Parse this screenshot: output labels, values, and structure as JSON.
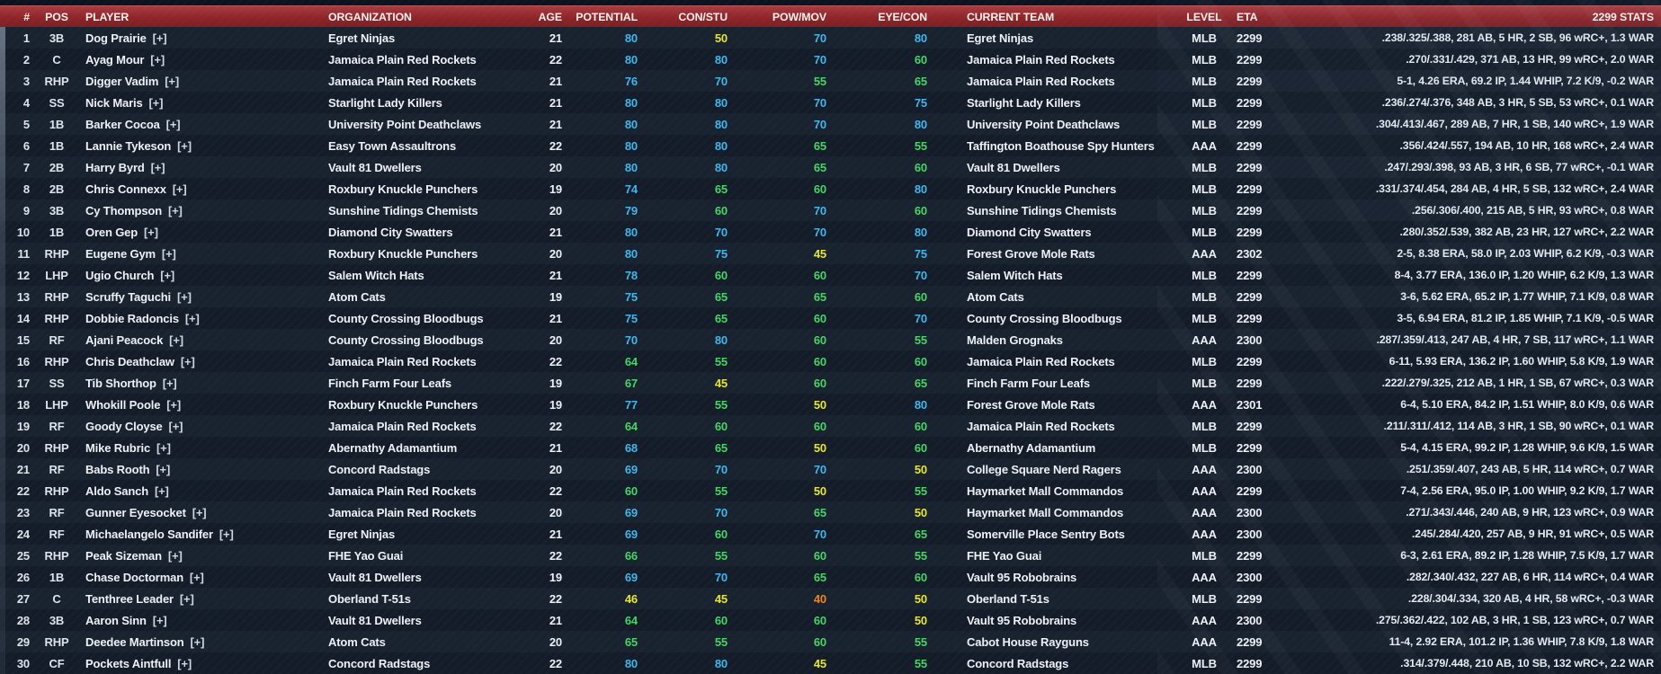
{
  "table": {
    "plus_tag": "[+]",
    "rating_colors": {
      "blue": "#45b4e8",
      "green": "#4cd168",
      "yellow": "#e4e53a",
      "orange": "#e8842d"
    },
    "rating_thresholds": {
      "blue": 68,
      "green": 55,
      "yellow": 45
    },
    "columns": [
      {
        "key": "rank",
        "label": "#"
      },
      {
        "key": "pos",
        "label": "POS"
      },
      {
        "key": "player",
        "label": "PLAYER"
      },
      {
        "key": "org",
        "label": "ORGANIZATION"
      },
      {
        "key": "age",
        "label": "AGE"
      },
      {
        "key": "potential",
        "label": "POTENTIAL"
      },
      {
        "key": "constu",
        "label": "CON/STU"
      },
      {
        "key": "powmov",
        "label": "POW/MOV"
      },
      {
        "key": "eyecon",
        "label": "EYE/CON"
      },
      {
        "key": "team",
        "label": "CURRENT TEAM"
      },
      {
        "key": "level",
        "label": "LEVEL"
      },
      {
        "key": "eta",
        "label": "ETA"
      },
      {
        "key": "stats",
        "label": "2299 STATS"
      }
    ],
    "rows": [
      {
        "rank": 1,
        "pos": "3B",
        "player": "Dog Prairie",
        "org": "Egret Ninjas",
        "age": 21,
        "potential": 80,
        "constu": 50,
        "powmov": 70,
        "eyecon": 80,
        "team": "Egret Ninjas",
        "level": "MLB",
        "eta": "2299",
        "stats": ".238/.325/.388, 281 AB, 5 HR, 2 SB, 96 wRC+, 1.3 WAR"
      },
      {
        "rank": 2,
        "pos": "C",
        "player": "Ayag Mour",
        "org": "Jamaica Plain Red Rockets",
        "age": 22,
        "potential": 80,
        "constu": 80,
        "powmov": 70,
        "eyecon": 60,
        "team": "Jamaica Plain Red Rockets",
        "level": "MLB",
        "eta": "2299",
        "stats": ".270/.331/.429, 371 AB, 13 HR, 99 wRC+, 2.0 WAR"
      },
      {
        "rank": 3,
        "pos": "RHP",
        "player": "Digger Vadim",
        "org": "Jamaica Plain Red Rockets",
        "age": 21,
        "potential": 76,
        "constu": 70,
        "powmov": 55,
        "eyecon": 65,
        "team": "Jamaica Plain Red Rockets",
        "level": "MLB",
        "eta": "2299",
        "stats": "5-1, 4.26 ERA, 69.2 IP, 1.44 WHIP, 7.2 K/9, -0.2 WAR"
      },
      {
        "rank": 4,
        "pos": "SS",
        "player": "Nick Maris",
        "org": "Starlight Lady Killers",
        "age": 21,
        "potential": 80,
        "constu": 80,
        "powmov": 70,
        "eyecon": 75,
        "team": "Starlight Lady Killers",
        "level": "MLB",
        "eta": "2299",
        "stats": ".236/.274/.376, 348 AB, 3 HR, 5 SB, 53 wRC+, 0.1 WAR"
      },
      {
        "rank": 5,
        "pos": "1B",
        "player": "Barker Cocoa",
        "org": "University Point Deathclaws",
        "age": 21,
        "potential": 80,
        "constu": 80,
        "powmov": 70,
        "eyecon": 80,
        "team": "University Point Deathclaws",
        "level": "MLB",
        "eta": "2299",
        "stats": ".304/.413/.467, 289 AB, 7 HR, 1 SB, 140 wRC+, 1.9 WAR"
      },
      {
        "rank": 6,
        "pos": "1B",
        "player": "Lannie Tykeson",
        "org": "Easy Town Assaultrons",
        "age": 22,
        "potential": 80,
        "constu": 80,
        "powmov": 65,
        "eyecon": 55,
        "team": "Taffington Boathouse Spy Hunters",
        "level": "AAA",
        "eta": "2299",
        "stats": ".356/.424/.557, 194 AB, 10 HR, 168 wRC+, 2.4 WAR"
      },
      {
        "rank": 7,
        "pos": "2B",
        "player": "Harry Byrd",
        "org": "Vault 81 Dwellers",
        "age": 20,
        "potential": 80,
        "constu": 80,
        "powmov": 65,
        "eyecon": 60,
        "team": "Vault 81 Dwellers",
        "level": "MLB",
        "eta": "2299",
        "stats": ".247/.293/.398, 93 AB, 3 HR, 6 SB, 77 wRC+, -0.1 WAR"
      },
      {
        "rank": 8,
        "pos": "2B",
        "player": "Chris Connexx",
        "org": "Roxbury Knuckle Punchers",
        "age": 19,
        "potential": 74,
        "constu": 65,
        "powmov": 60,
        "eyecon": 80,
        "team": "Roxbury Knuckle Punchers",
        "level": "MLB",
        "eta": "2299",
        "stats": ".331/.374/.454, 284 AB, 4 HR, 5 SB, 132 wRC+, 2.4 WAR"
      },
      {
        "rank": 9,
        "pos": "3B",
        "player": "Cy Thompson",
        "org": "Sunshine Tidings Chemists",
        "age": 20,
        "potential": 79,
        "constu": 60,
        "powmov": 70,
        "eyecon": 60,
        "team": "Sunshine Tidings Chemists",
        "level": "MLB",
        "eta": "2299",
        "stats": ".256/.306/.400, 215 AB, 5 HR, 93 wRC+, 0.8 WAR"
      },
      {
        "rank": 10,
        "pos": "1B",
        "player": "Oren Gep",
        "org": "Diamond City Swatters",
        "age": 21,
        "potential": 80,
        "constu": 70,
        "powmov": 70,
        "eyecon": 80,
        "team": "Diamond City Swatters",
        "level": "MLB",
        "eta": "2299",
        "stats": ".280/.352/.539, 382 AB, 23 HR, 127 wRC+, 2.2 WAR"
      },
      {
        "rank": 11,
        "pos": "RHP",
        "player": "Eugene Gym",
        "org": "Roxbury Knuckle Punchers",
        "age": 20,
        "potential": 80,
        "constu": 75,
        "powmov": 45,
        "eyecon": 75,
        "team": "Forest Grove Mole Rats",
        "level": "AAA",
        "eta": "2302",
        "stats": "2-5, 8.38 ERA, 58.0 IP, 2.03 WHIP, 6.2 K/9, -0.3 WAR"
      },
      {
        "rank": 12,
        "pos": "LHP",
        "player": "Ugio Church",
        "org": "Salem Witch Hats",
        "age": 21,
        "potential": 78,
        "constu": 60,
        "powmov": 60,
        "eyecon": 70,
        "team": "Salem Witch Hats",
        "level": "MLB",
        "eta": "2299",
        "stats": "8-4, 3.77 ERA, 136.0 IP, 1.20 WHIP, 6.2 K/9, 1.3 WAR"
      },
      {
        "rank": 13,
        "pos": "RHP",
        "player": "Scruffy Taguchi",
        "org": "Atom Cats",
        "age": 19,
        "potential": 75,
        "constu": 65,
        "powmov": 65,
        "eyecon": 60,
        "team": "Atom Cats",
        "level": "MLB",
        "eta": "2299",
        "stats": "3-6, 5.62 ERA, 65.2 IP, 1.77 WHIP, 7.1 K/9, 0.8 WAR"
      },
      {
        "rank": 14,
        "pos": "RHP",
        "player": "Dobbie Radoncis",
        "org": "County Crossing Bloodbugs",
        "age": 21,
        "potential": 75,
        "constu": 65,
        "powmov": 60,
        "eyecon": 70,
        "team": "County Crossing Bloodbugs",
        "level": "MLB",
        "eta": "2299",
        "stats": "3-5, 6.94 ERA, 81.2 IP, 1.85 WHIP, 7.1 K/9, -0.5 WAR"
      },
      {
        "rank": 15,
        "pos": "RF",
        "player": "Ajani Peacock",
        "org": "County Crossing Bloodbugs",
        "age": 20,
        "potential": 70,
        "constu": 80,
        "powmov": 60,
        "eyecon": 55,
        "team": "Malden Grognaks",
        "level": "AAA",
        "eta": "2300",
        "stats": ".287/.359/.413, 247 AB, 4 HR, 7 SB, 117 wRC+, 1.1 WAR"
      },
      {
        "rank": 16,
        "pos": "RHP",
        "player": "Chris Deathclaw",
        "org": "Jamaica Plain Red Rockets",
        "age": 22,
        "potential": 64,
        "constu": 55,
        "powmov": 60,
        "eyecon": 60,
        "team": "Jamaica Plain Red Rockets",
        "level": "MLB",
        "eta": "2299",
        "stats": "6-11, 5.93 ERA, 136.2 IP, 1.60 WHIP, 5.8 K/9, 1.9 WAR"
      },
      {
        "rank": 17,
        "pos": "SS",
        "player": "Tib Shorthop",
        "org": "Finch Farm Four Leafs",
        "age": 19,
        "potential": 67,
        "constu": 45,
        "powmov": 60,
        "eyecon": 65,
        "team": "Finch Farm Four Leafs",
        "level": "MLB",
        "eta": "2299",
        "stats": ".222/.279/.325, 212 AB, 1 HR, 1 SB, 67 wRC+, 0.3 WAR"
      },
      {
        "rank": 18,
        "pos": "LHP",
        "player": "Whokill Poole",
        "org": "Roxbury Knuckle Punchers",
        "age": 19,
        "potential": 77,
        "constu": 55,
        "powmov": 50,
        "eyecon": 80,
        "team": "Forest Grove Mole Rats",
        "level": "AAA",
        "eta": "2301",
        "stats": "6-4, 5.10 ERA, 84.2 IP, 1.51 WHIP, 8.0 K/9, 0.6 WAR"
      },
      {
        "rank": 19,
        "pos": "RF",
        "player": "Goody Cloyse",
        "org": "Jamaica Plain Red Rockets",
        "age": 22,
        "potential": 64,
        "constu": 60,
        "powmov": 60,
        "eyecon": 60,
        "team": "Jamaica Plain Red Rockets",
        "level": "MLB",
        "eta": "2299",
        "stats": ".211/.311/.412, 114 AB, 3 HR, 1 SB, 90 wRC+, 0.1 WAR"
      },
      {
        "rank": 20,
        "pos": "RHP",
        "player": "Mike Rubric",
        "org": "Abernathy Adamantium",
        "age": 21,
        "potential": 68,
        "constu": 65,
        "powmov": 50,
        "eyecon": 60,
        "team": "Abernathy Adamantium",
        "level": "MLB",
        "eta": "2299",
        "stats": "5-4, 4.15 ERA, 99.2 IP, 1.28 WHIP, 9.6 K/9, 1.5 WAR"
      },
      {
        "rank": 21,
        "pos": "RF",
        "player": "Babs Rooth",
        "org": "Concord Radstags",
        "age": 20,
        "potential": 69,
        "constu": 70,
        "powmov": 70,
        "eyecon": 50,
        "team": "College Square Nerd Ragers",
        "level": "AAA",
        "eta": "2300",
        "stats": ".251/.359/.407, 243 AB, 5 HR, 114 wRC+, 0.7 WAR"
      },
      {
        "rank": 22,
        "pos": "RHP",
        "player": "Aldo Sanch",
        "org": "Jamaica Plain Red Rockets",
        "age": 22,
        "potential": 60,
        "constu": 55,
        "powmov": 50,
        "eyecon": 55,
        "team": "Haymarket Mall Commandos",
        "level": "AAA",
        "eta": "2299",
        "stats": "7-4, 2.56 ERA, 95.0 IP, 1.00 WHIP, 9.2 K/9, 1.7 WAR"
      },
      {
        "rank": 23,
        "pos": "RF",
        "player": "Gunner Eyesocket",
        "org": "Jamaica Plain Red Rockets",
        "age": 20,
        "potential": 69,
        "constu": 70,
        "powmov": 65,
        "eyecon": 50,
        "team": "Haymarket Mall Commandos",
        "level": "AAA",
        "eta": "2300",
        "stats": ".271/.343/.446, 240 AB, 9 HR, 123 wRC+, 0.9 WAR"
      },
      {
        "rank": 24,
        "pos": "RF",
        "player": "Michaelangelo Sandifer",
        "org": "Egret Ninjas",
        "age": 21,
        "potential": 69,
        "constu": 60,
        "powmov": 70,
        "eyecon": 65,
        "team": "Somerville Place Sentry Bots",
        "level": "AAA",
        "eta": "2300",
        "stats": ".245/.284/.420, 257 AB, 9 HR, 91 wRC+, 0.5 WAR"
      },
      {
        "rank": 25,
        "pos": "RHP",
        "player": "Peak Sizeman",
        "org": "FHE Yao Guai",
        "age": 22,
        "potential": 66,
        "constu": 55,
        "powmov": 60,
        "eyecon": 55,
        "team": "FHE Yao Guai",
        "level": "MLB",
        "eta": "2299",
        "stats": "6-3, 2.61 ERA, 89.2 IP, 1.28 WHIP, 7.5 K/9, 1.7 WAR"
      },
      {
        "rank": 26,
        "pos": "1B",
        "player": "Chase Doctorman",
        "org": "Vault 81 Dwellers",
        "age": 19,
        "potential": 69,
        "constu": 70,
        "powmov": 65,
        "eyecon": 60,
        "team": "Vault 95 Robobrains",
        "level": "AAA",
        "eta": "2300",
        "stats": ".282/.340/.432, 227 AB, 6 HR, 114 wRC+, 0.4 WAR"
      },
      {
        "rank": 27,
        "pos": "C",
        "player": "Tenthree Leader",
        "org": "Oberland T-51s",
        "age": 22,
        "potential": 46,
        "constu": 45,
        "powmov": 40,
        "eyecon": 50,
        "team": "Oberland T-51s",
        "level": "MLB",
        "eta": "2299",
        "stats": ".228/.304/.334, 320 AB, 4 HR, 58 wRC+, -0.3 WAR"
      },
      {
        "rank": 28,
        "pos": "3B",
        "player": "Aaron Sinn",
        "org": "Vault 81 Dwellers",
        "age": 21,
        "potential": 64,
        "constu": 60,
        "powmov": 60,
        "eyecon": 50,
        "team": "Vault 95 Robobrains",
        "level": "AAA",
        "eta": "2300",
        "stats": ".275/.362/.422, 102 AB, 3 HR, 1 SB, 123 wRC+, 0.7 WAR"
      },
      {
        "rank": 29,
        "pos": "RHP",
        "player": "Deedee Martinson",
        "org": "Atom Cats",
        "age": 20,
        "potential": 65,
        "constu": 55,
        "powmov": 60,
        "eyecon": 55,
        "team": "Cabot House Rayguns",
        "level": "AAA",
        "eta": "2299",
        "stats": "11-4, 2.92 ERA, 101.2 IP, 1.36 WHIP, 7.8 K/9, 1.8 WAR"
      },
      {
        "rank": 30,
        "pos": "CF",
        "player": "Pockets Aintfull",
        "org": "Concord Radstags",
        "age": 22,
        "potential": 80,
        "constu": 80,
        "powmov": 45,
        "eyecon": 55,
        "team": "Concord Radstags",
        "level": "MLB",
        "eta": "2299",
        "stats": ".314/.379/.448, 210 AB, 10 SB, 132 wRC+, 2.2 WAR"
      }
    ]
  }
}
